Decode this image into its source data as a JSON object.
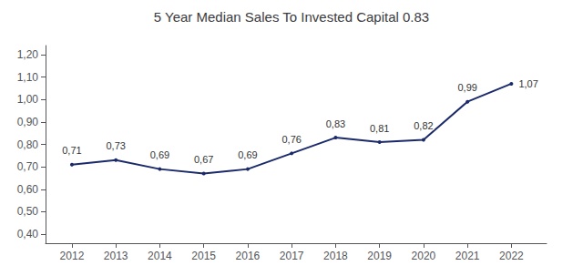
{
  "chart_data": {
    "type": "line",
    "title": "5 Year Median Sales To Invested Capital 0.83",
    "x": [
      2012,
      2013,
      2014,
      2015,
      2016,
      2017,
      2018,
      2019,
      2020,
      2021,
      2022
    ],
    "values": [
      0.71,
      0.73,
      0.69,
      0.67,
      0.69,
      0.76,
      0.83,
      0.81,
      0.82,
      0.99,
      1.07
    ],
    "value_labels": [
      "0,71",
      "0,73",
      "0,69",
      "0,67",
      "0,69",
      "0,76",
      "0,83",
      "0,81",
      "0,82",
      "0,99",
      "1,07"
    ],
    "data_labels": true,
    "color": "#1b2a6b",
    "xlim": [
      2011.4,
      2022.8
    ],
    "xticks": [
      2012,
      2013,
      2014,
      2015,
      2016,
      2017,
      2018,
      2019,
      2020,
      2021,
      2022
    ],
    "ylim": [
      0.36,
      1.24
    ],
    "yticks": [
      {
        "value": 0.4,
        "label": "0,40"
      },
      {
        "value": 0.5,
        "label": "0,50"
      },
      {
        "value": 0.6,
        "label": "0,60"
      },
      {
        "value": 0.7,
        "label": "0,70"
      },
      {
        "value": 0.8,
        "label": "0,80"
      },
      {
        "value": 0.9,
        "label": "0,90"
      },
      {
        "value": 1.0,
        "label": "1,00"
      },
      {
        "value": 1.1,
        "label": "1,10"
      },
      {
        "value": 1.2,
        "label": "1,20"
      }
    ],
    "grid": false
  }
}
